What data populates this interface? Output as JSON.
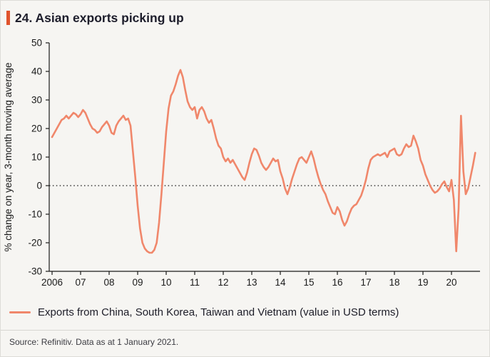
{
  "page": {
    "source": "Source: Refinitiv. Data as at 1 January 2021."
  },
  "colors": {
    "background": "#f6f5f2",
    "accent_bar": "#e0532c",
    "line": "#f0876b",
    "axis": "#1a1a1a"
  },
  "chart_data": {
    "type": "line",
    "title": "24. Asian exports picking up",
    "xlabel": "",
    "ylabel": "% change on year, 3-month moving average",
    "ylim": [
      -30,
      50
    ],
    "xlim": [
      2005.9,
      2021.0
    ],
    "y_ticks": [
      50,
      40,
      30,
      20,
      10,
      0,
      -10,
      -20,
      -30
    ],
    "x_tick_years": [
      2006,
      2007,
      2008,
      2009,
      2010,
      2011,
      2012,
      2013,
      2014,
      2015,
      2016,
      2017,
      2018,
      2019,
      2020
    ],
    "x_tick_labels": [
      "2006",
      "07",
      "08",
      "09",
      "10",
      "11",
      "12",
      "13",
      "14",
      "15",
      "16",
      "17",
      "18",
      "19",
      "20"
    ],
    "grid": false,
    "zero_line": "dotted",
    "legend_position": "bottom-left",
    "series": [
      {
        "name": "Exports from China, South Korea, Taiwan and Vietnam (value in USD terms)",
        "color": "#f0876b",
        "x_start": 2006.0,
        "x_step": "monthly",
        "values": [
          17,
          18.5,
          20,
          21.5,
          23,
          23.5,
          24.5,
          23.5,
          24.5,
          25.5,
          25,
          24,
          25,
          26.5,
          25.5,
          23.5,
          21.5,
          20,
          19.5,
          18.5,
          19,
          20.5,
          21.5,
          22.5,
          21,
          18.5,
          18,
          21,
          22.5,
          23.5,
          24.5,
          23,
          23.5,
          21,
          12,
          3,
          -7,
          -15,
          -20,
          -22,
          -23,
          -23.5,
          -23.5,
          -22.5,
          -20,
          -13,
          -3,
          8,
          19,
          27,
          31.5,
          33,
          35.5,
          38.5,
          40.5,
          38,
          33.5,
          29.5,
          27.5,
          26.5,
          27.5,
          23.5,
          26.5,
          27.5,
          26,
          23.5,
          22,
          23,
          20,
          16.5,
          14,
          13,
          10,
          8.5,
          9.5,
          8,
          9,
          7.5,
          6,
          4.5,
          3,
          2,
          4.5,
          8,
          11,
          13,
          12.5,
          10.5,
          8,
          6.5,
          5.5,
          6.5,
          8,
          9.5,
          8.5,
          9,
          5,
          2.5,
          -1,
          -3,
          -0.5,
          2.5,
          5,
          7.5,
          9.5,
          10,
          9,
          8,
          10,
          12,
          9.5,
          6,
          3,
          0.5,
          -1.5,
          -3,
          -5.5,
          -7.5,
          -9.5,
          -10,
          -7.5,
          -9,
          -12,
          -14,
          -12.5,
          -10,
          -8,
          -7,
          -6.5,
          -5,
          -3.5,
          -1,
          2,
          6,
          9,
          10,
          10.5,
          11,
          10.5,
          11,
          11.5,
          10,
          12,
          12.5,
          13,
          11,
          10.5,
          11,
          13,
          14.5,
          13.5,
          14,
          17.5,
          15.5,
          13,
          9,
          7,
          4,
          2,
          0,
          -1.5,
          -2.5,
          -2,
          -1,
          0.5,
          1.5,
          -0.5,
          -2,
          2,
          -5,
          -23,
          -8,
          24.5,
          5,
          -3,
          -1,
          3,
          7,
          11.5
        ]
      }
    ]
  }
}
